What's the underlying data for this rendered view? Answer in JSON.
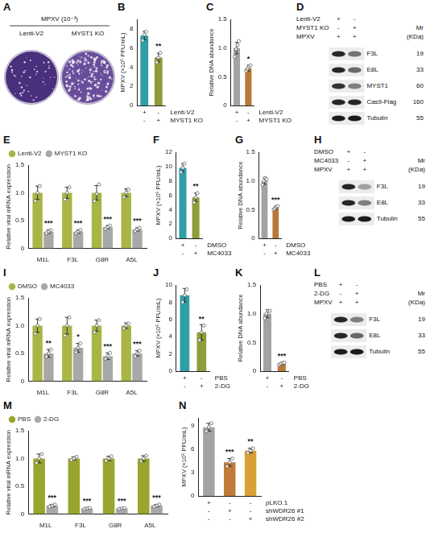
{
  "plaque": {
    "panel": "A",
    "title": "MPXV (10⁻³)",
    "labels": [
      "Lenti-V2",
      "MYST1 KO"
    ]
  },
  "blots": [
    {
      "panel": "D",
      "mr_label": "Mr",
      "mw_unit": "(KDa)",
      "conditions": [
        {
          "name": "Lenti-V2",
          "signs": [
            "+",
            "-"
          ]
        },
        {
          "name": "MYST1 KO",
          "signs": [
            "-",
            "+"
          ]
        },
        {
          "name": "MPXV",
          "signs": [
            "+",
            "+"
          ]
        }
      ],
      "bands": [
        {
          "name": "F3L",
          "mw": 19,
          "intensity": [
            0.9,
            0.55
          ]
        },
        {
          "name": "E8L",
          "mw": 33,
          "intensity": [
            0.9,
            0.6
          ]
        },
        {
          "name": "MYST1",
          "mw": 60,
          "intensity": [
            0.85,
            0.5
          ]
        },
        {
          "name": "Cas9-Flag",
          "mw": 160,
          "intensity": [
            0.9,
            0.9
          ]
        },
        {
          "name": "Tubulin",
          "mw": 55,
          "intensity": [
            0.95,
            0.95
          ]
        }
      ]
    },
    {
      "panel": "H",
      "mr_label": "Mr",
      "mw_unit": "(KDa)",
      "conditions": [
        {
          "name": "DMSO",
          "signs": [
            "+",
            "-"
          ]
        },
        {
          "name": "MC4033",
          "signs": [
            "-",
            "+"
          ]
        },
        {
          "name": "MPXV",
          "signs": [
            "+",
            "+"
          ]
        }
      ],
      "bands": [
        {
          "name": "F3L",
          "mw": 19,
          "intensity": [
            0.9,
            0.35
          ]
        },
        {
          "name": "E8L",
          "mw": 33,
          "intensity": [
            0.9,
            0.5
          ]
        },
        {
          "name": "Tubulin",
          "mw": 55,
          "intensity": [
            0.95,
            0.95
          ]
        }
      ]
    },
    {
      "panel": "L",
      "mr_label": "Mr",
      "mw_unit": "(KDa)",
      "conditions": [
        {
          "name": "PBS",
          "signs": [
            "+",
            "-"
          ]
        },
        {
          "name": "2-DG",
          "signs": [
            "-",
            "+"
          ]
        },
        {
          "name": "MPXV",
          "signs": [
            "+",
            "+"
          ]
        }
      ],
      "bands": [
        {
          "name": "F3L",
          "mw": 19,
          "intensity": [
            0.9,
            0.5
          ]
        },
        {
          "name": "E8L",
          "mw": 33,
          "intensity": [
            0.9,
            0.6
          ]
        },
        {
          "name": "Tubulin",
          "mw": 55,
          "intensity": [
            0.95,
            0.95
          ]
        }
      ]
    }
  ],
  "chart_data": [
    {
      "panel": "B",
      "type": "bar",
      "ylabel": "MPXV (×10⁵ PFU/mL)",
      "values": [
        7.3,
        5.0
      ],
      "errors": [
        0.45,
        0.45
      ],
      "points": [
        [
          6.8,
          7.4,
          7.7
        ],
        [
          4.5,
          5.0,
          5.5
        ]
      ],
      "colors": [
        "#2f9ea6",
        "#8f9c3a"
      ],
      "annotations": [
        null,
        "**"
      ],
      "conditions": [
        {
          "name": "Lenti-V2",
          "signs": [
            "+",
            "-"
          ]
        },
        {
          "name": "MYST1 KO",
          "signs": [
            "-",
            "+"
          ]
        }
      ],
      "ylim": [
        0,
        9
      ],
      "yticks": [
        0,
        2,
        4,
        6,
        8
      ],
      "grid": false,
      "tick_labels": "y"
    },
    {
      "panel": "C",
      "type": "bar",
      "ylabel": "Relative DNA abundance",
      "values": [
        1.0,
        0.65
      ],
      "errors": [
        0.1,
        0.05
      ],
      "points": [
        [
          0.85,
          0.98,
          1.05,
          1.12
        ],
        [
          0.6,
          0.64,
          0.68,
          0.7
        ]
      ],
      "colors": [
        "#a3a3a3",
        "#b87838"
      ],
      "annotations": [
        null,
        "*"
      ],
      "conditions": [
        {
          "name": "Lenti-V2",
          "signs": [
            "+",
            "-"
          ]
        },
        {
          "name": "MYST1 KO",
          "signs": [
            "-",
            "+"
          ]
        }
      ],
      "ylim": [
        0,
        1.5
      ],
      "yticks": [
        0,
        0.5,
        {
          "value": 1,
          "label": "1.0"
        },
        1.5
      ],
      "grid": false,
      "tick_labels": "y"
    },
    {
      "panel": "E",
      "type": "bar",
      "ylabel": "Relative viral mRNA expression",
      "categories": [
        "M1L",
        "F3L",
        "G8R",
        "A5L"
      ],
      "series": [
        {
          "name": "Lenti-V2",
          "color": "#a9b545",
          "values": [
            1,
            1,
            1,
            1
          ],
          "errors": [
            0.12,
            0.1,
            0.13,
            0.07
          ],
          "points": [
            [
              0.85,
              1.0,
              1.12
            ],
            [
              0.88,
              1.0,
              1.1
            ],
            [
              0.85,
              0.98,
              1.15
            ],
            [
              0.92,
              1.0,
              1.06
            ]
          ]
        },
        {
          "name": "MYST1 KO",
          "color": "#a8a8a8",
          "values": [
            0.3,
            0.3,
            0.38,
            0.34
          ],
          "errors": [
            0.03,
            0.03,
            0.03,
            0.03
          ],
          "points": [
            [
              0.27,
              0.3,
              0.33
            ],
            [
              0.27,
              0.3,
              0.33
            ],
            [
              0.35,
              0.38,
              0.41
            ],
            [
              0.31,
              0.34,
              0.37
            ]
          ],
          "annotations": [
            "***",
            "***",
            "***",
            "***"
          ]
        }
      ],
      "legend": "top",
      "ylim": [
        0,
        1.5
      ],
      "yticks": [
        0,
        0.5,
        {
          "value": 1,
          "label": "1.0"
        },
        1.5
      ],
      "grid": false,
      "tick_labels": true
    },
    {
      "panel": "F",
      "type": "bar",
      "ylabel": "MPXV (×10⁵ PFU/mL)",
      "values": [
        9.8,
        5.7
      ],
      "errors": [
        0.6,
        0.6
      ],
      "points": [
        [
          9.2,
          9.8,
          10.4
        ],
        [
          5.0,
          5.7,
          6.3
        ]
      ],
      "colors": [
        "#2f9ea6",
        "#8f9c3a"
      ],
      "annotations": [
        null,
        "**"
      ],
      "conditions": [
        {
          "name": "DMSO",
          "signs": [
            "+",
            "-"
          ]
        },
        {
          "name": "MC4033",
          "signs": [
            "-",
            "+"
          ]
        }
      ],
      "ylim": [
        0,
        12
      ],
      "yticks": [
        0,
        2,
        4,
        6,
        8,
        10,
        12
      ],
      "grid": false,
      "tick_labels": "y"
    },
    {
      "panel": "G",
      "type": "bar",
      "ylabel": "Relative DNA abundance",
      "values": [
        1.0,
        0.53
      ],
      "errors": [
        0.06,
        0.03
      ],
      "points": [
        [
          0.93,
          1.0,
          1.05,
          1.03
        ],
        [
          0.5,
          0.52,
          0.55,
          0.56
        ]
      ],
      "colors": [
        "#a3a3a3",
        "#b87838"
      ],
      "annotations": [
        null,
        "***"
      ],
      "conditions": [
        {
          "name": "DMSO",
          "signs": [
            "+",
            "-"
          ]
        },
        {
          "name": "MC4033",
          "signs": [
            "-",
            "+"
          ]
        }
      ],
      "ylim": [
        0,
        1.5
      ],
      "yticks": [
        0,
        0.5,
        {
          "value": 1,
          "label": "1.0"
        },
        1.5
      ],
      "grid": false,
      "tick_labels": "y"
    },
    {
      "panel": "I",
      "type": "bar",
      "ylabel": "Relative viral mRNA expression",
      "categories": [
        "M1L",
        "F3L",
        "G8R",
        "A5L"
      ],
      "series": [
        {
          "name": "DMSO",
          "color": "#a9b545",
          "values": [
            1,
            1,
            1,
            1
          ],
          "errors": [
            0.12,
            0.15,
            0.1,
            0.05
          ],
          "points": [
            [
              0.85,
              1.0,
              1.12
            ],
            [
              0.82,
              1.0,
              1.15
            ],
            [
              0.88,
              1.0,
              1.1
            ],
            [
              0.95,
              1.0,
              1.04
            ]
          ]
        },
        {
          "name": "MC4033",
          "color": "#a8a8a8",
          "values": [
            0.5,
            0.6,
            0.45,
            0.5
          ],
          "errors": [
            0.07,
            0.08,
            0.06,
            0.05
          ],
          "points": [
            [
              0.44,
              0.5,
              0.57
            ],
            [
              0.52,
              0.6,
              0.68
            ],
            [
              0.4,
              0.45,
              0.51
            ],
            [
              0.45,
              0.5,
              0.55
            ]
          ],
          "annotations": [
            "**",
            "*",
            "***",
            "***"
          ]
        }
      ],
      "legend": "top",
      "ylim": [
        0,
        1.5
      ],
      "yticks": [
        0,
        0.5,
        {
          "value": 1,
          "label": "1.0"
        },
        1.5
      ],
      "grid": false,
      "tick_labels": true
    },
    {
      "panel": "J",
      "type": "bar",
      "ylabel": "MPXV (×10⁵ PFU/mL)",
      "values": [
        8.8,
        4.5
      ],
      "errors": [
        0.8,
        0.9
      ],
      "points": [
        [
          8.0,
          8.8,
          9.5
        ],
        [
          3.6,
          4.5,
          5.3
        ]
      ],
      "colors": [
        "#2f9ea6",
        "#8f9c3a"
      ],
      "annotations": [
        null,
        "**"
      ],
      "conditions": [
        {
          "name": "PBS",
          "signs": [
            "+",
            "-"
          ]
        },
        {
          "name": "2-DG",
          "signs": [
            "-",
            "+"
          ]
        }
      ],
      "ylim": [
        0,
        10
      ],
      "yticks": [
        0,
        2,
        4,
        6,
        8,
        10
      ],
      "grid": false,
      "tick_labels": "y"
    },
    {
      "panel": "K",
      "type": "bar",
      "ylabel": "Relative DNA abundance",
      "values": [
        1.0,
        0.13
      ],
      "errors": [
        0.07,
        0.02
      ],
      "points": [
        [
          0.92,
          1.0,
          1.05,
          1.05
        ],
        [
          0.11,
          0.13,
          0.14,
          0.15
        ]
      ],
      "colors": [
        "#a3a3a3",
        "#b87838"
      ],
      "annotations": [
        null,
        "***"
      ],
      "conditions": [
        {
          "name": "PBS",
          "signs": [
            "+",
            "-"
          ]
        },
        {
          "name": "2-DG",
          "signs": [
            "-",
            "+"
          ]
        }
      ],
      "ylim": [
        0,
        1.5
      ],
      "yticks": [
        0,
        0.5,
        {
          "value": 1,
          "label": "1.0"
        },
        1.5
      ],
      "grid": false,
      "tick_labels": "y"
    },
    {
      "panel": "M",
      "type": "bar",
      "ylabel": "Relative viral mRNA expression",
      "categories": [
        "M1L",
        "F3L",
        "G8R",
        "A5L"
      ],
      "series": [
        {
          "name": "PBS",
          "color": "#9aa52f",
          "values": [
            1,
            1,
            1,
            1
          ],
          "errors": [
            0.08,
            0.03,
            0.04,
            0.05
          ],
          "points": [
            [
              0.92,
              1.0,
              1.08
            ],
            [
              0.97,
              1.0,
              1.03
            ],
            [
              0.96,
              1.0,
              1.04
            ],
            [
              0.95,
              1.0,
              1.05
            ]
          ]
        },
        {
          "name": "2-DG",
          "color": "#a8a8a8",
          "values": [
            0.15,
            0.1,
            0.1,
            0.15
          ],
          "errors": [
            0.02,
            0.01,
            0.01,
            0.02
          ],
          "points": [
            [
              0.13,
              0.15,
              0.17
            ],
            [
              0.09,
              0.1,
              0.11
            ],
            [
              0.09,
              0.1,
              0.11
            ],
            [
              0.13,
              0.15,
              0.17
            ]
          ],
          "annotations": [
            "***",
            "***",
            "***",
            "***"
          ]
        }
      ],
      "legend": "top",
      "ylim": [
        0,
        1.5
      ],
      "yticks": [
        0,
        0.5,
        {
          "value": 1,
          "label": "1.0"
        },
        1.5
      ],
      "grid": false,
      "tick_labels": true
    },
    {
      "panel": "N",
      "type": "bar",
      "ylabel": "MPXV (×10⁵ PFU/mL)",
      "values": [
        8.8,
        4.3,
        5.8
      ],
      "errors": [
        0.5,
        0.5,
        0.3
      ],
      "points": [
        [
          8.3,
          8.8,
          9.3
        ],
        [
          3.8,
          4.3,
          4.8
        ],
        [
          5.5,
          5.8,
          6.1
        ]
      ],
      "colors": [
        "#a3a3a3",
        "#c07a3a",
        "#d9a036"
      ],
      "annotations": [
        null,
        "***",
        "**"
      ],
      "conditions": [
        {
          "name": "pLKO.1",
          "signs": [
            "+",
            "-",
            "-"
          ]
        },
        {
          "name": "shWDR26 #1",
          "signs": [
            "-",
            "+",
            "-"
          ]
        },
        {
          "name": "shWDR26 #2",
          "signs": [
            "-",
            "-",
            "+"
          ]
        }
      ],
      "ylim": [
        0,
        10
      ],
      "yticks": [
        0,
        3,
        6,
        9
      ],
      "grid": false,
      "tick_labels": "y"
    }
  ]
}
